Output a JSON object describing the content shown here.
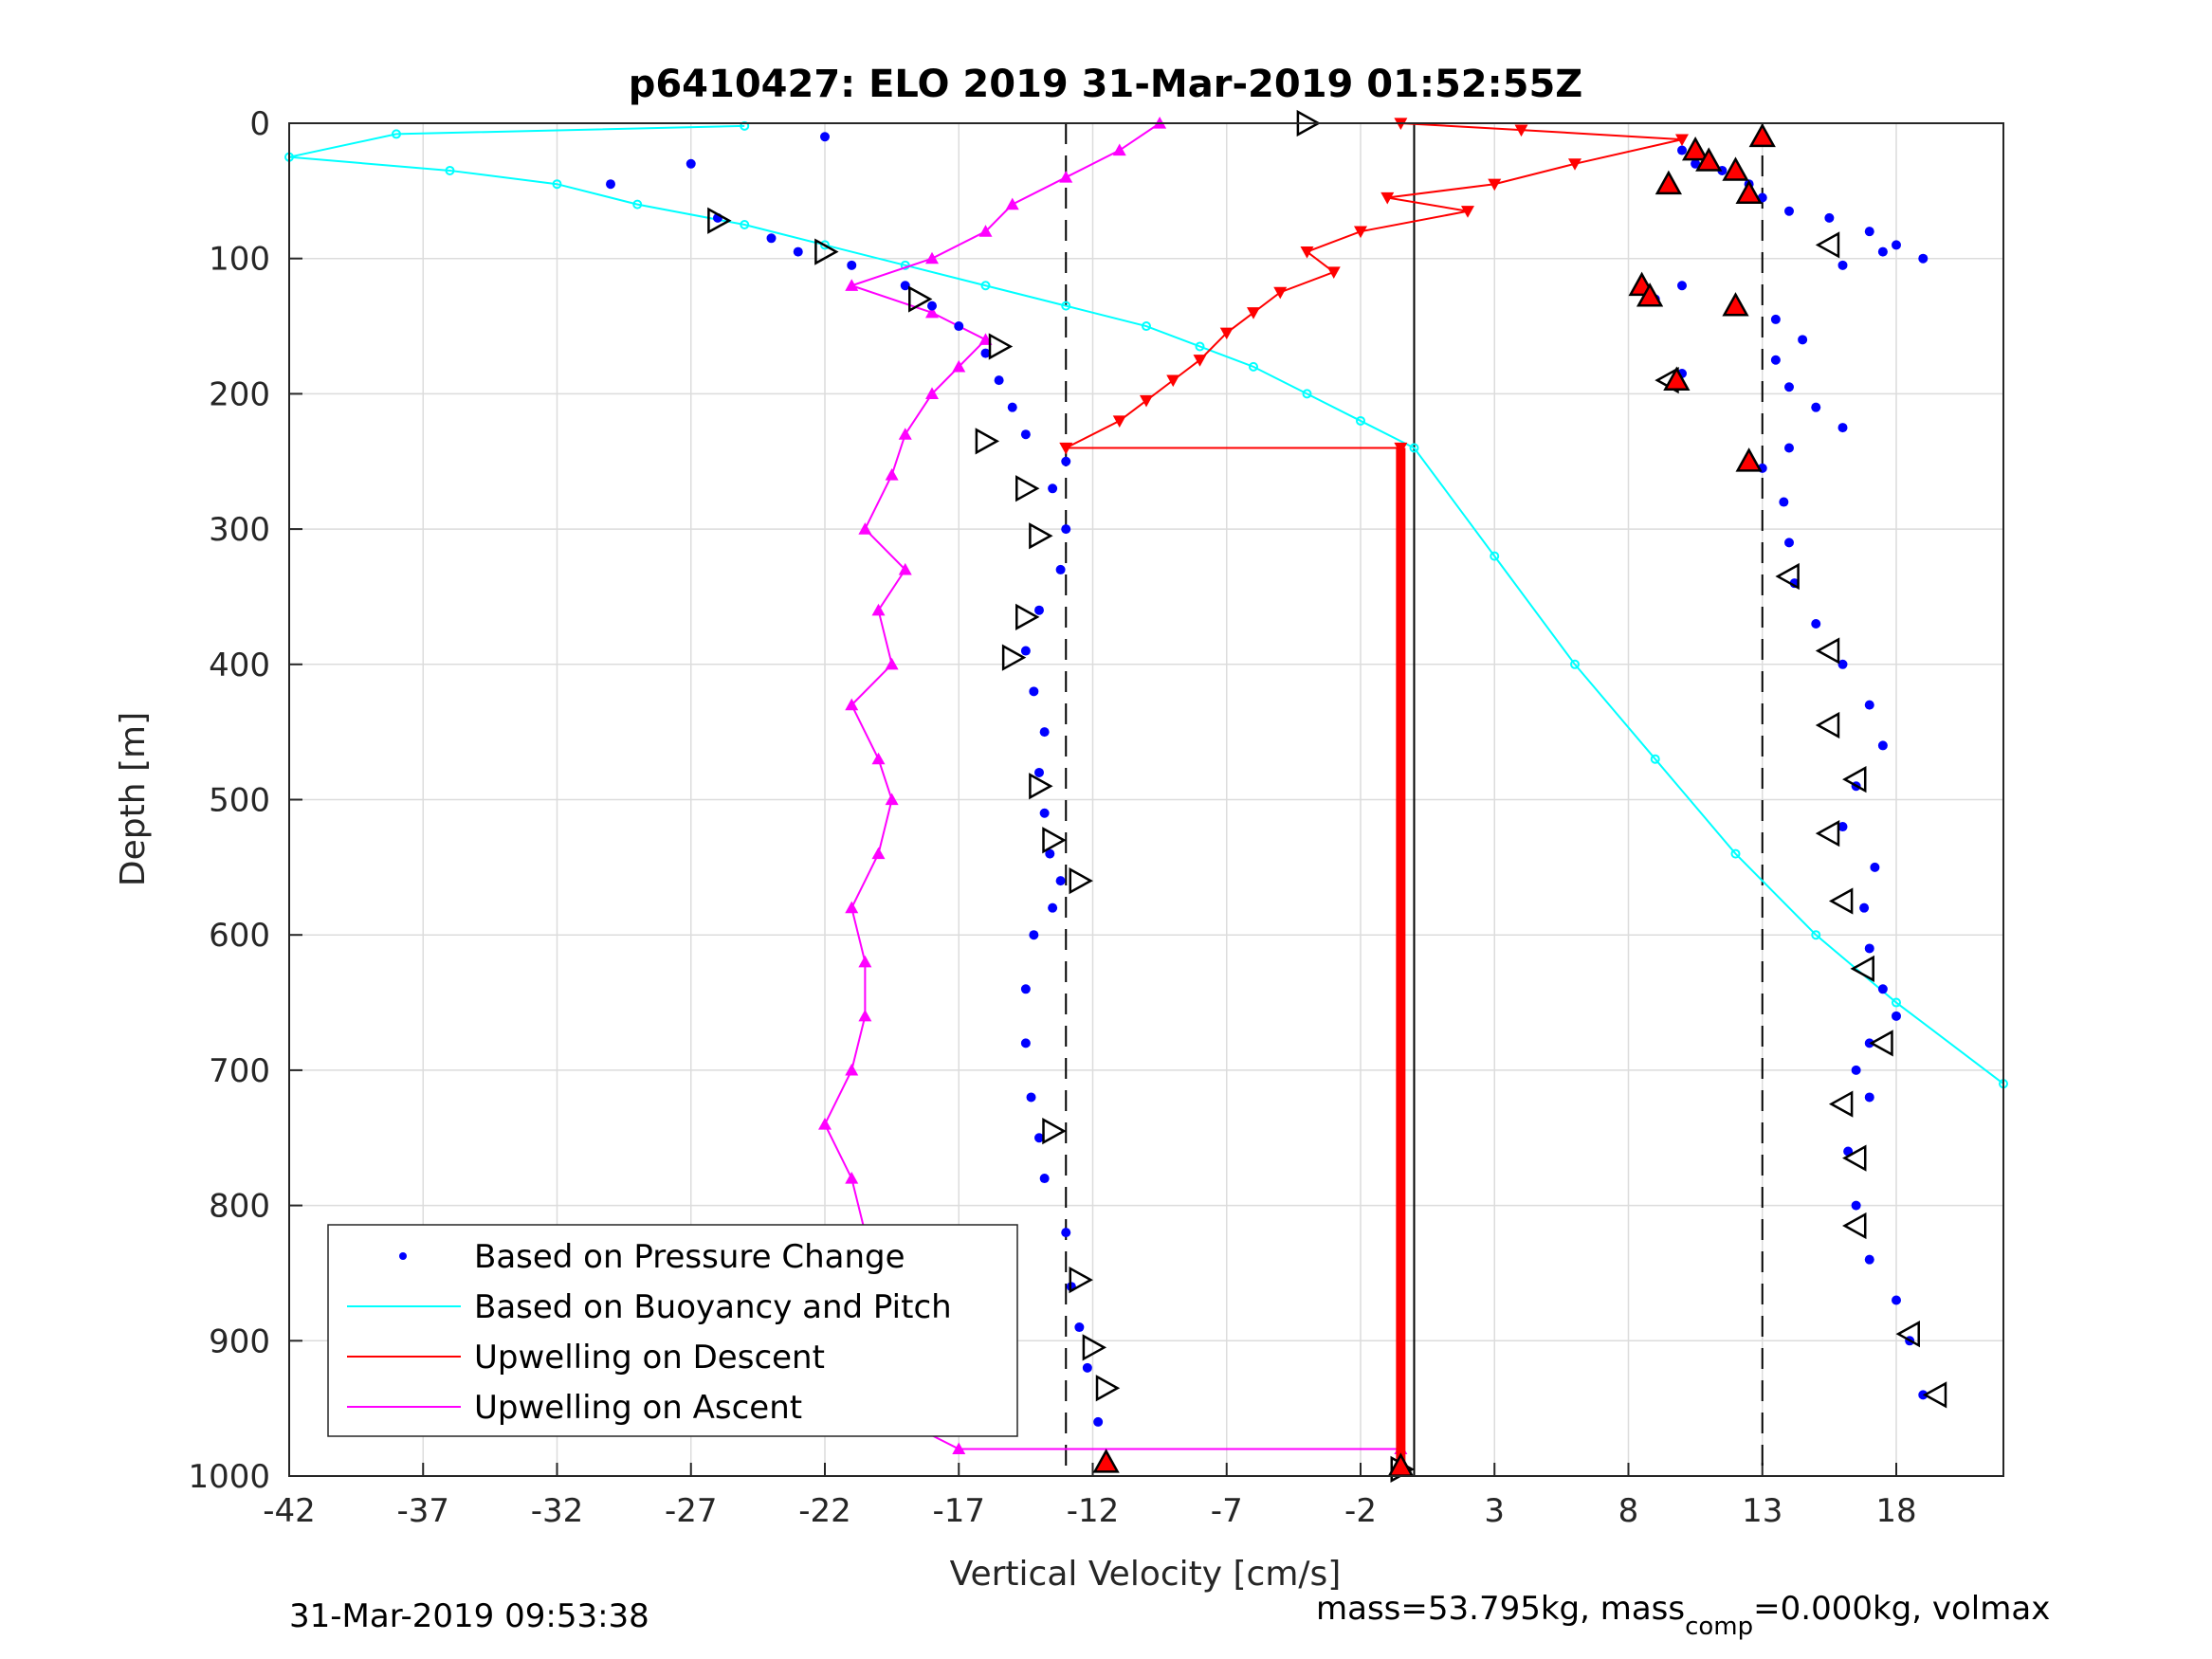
{
  "chart_data": {
    "type": "scatter",
    "title": "p6410427: ELO 2019 31-Mar-2019 01:52:55Z",
    "xlabel": "Vertical Velocity [cm/s]",
    "ylabel": "Depth [m]",
    "xlim": [
      -42,
      22
    ],
    "ylim": [
      1000,
      0
    ],
    "y_reversed": true,
    "grid": true,
    "legend_position": "bottom-left",
    "x_ticks": [
      -42,
      -37,
      -32,
      -27,
      -22,
      -17,
      -12,
      -7,
      -2,
      3,
      8,
      13,
      18
    ],
    "y_ticks": [
      0,
      100,
      200,
      300,
      400,
      500,
      600,
      700,
      800,
      900,
      1000
    ],
    "reference_lines": [
      {
        "x": -13,
        "style": "dashed",
        "color": "#000000"
      },
      {
        "x": 13,
        "style": "dashed",
        "color": "#000000"
      },
      {
        "x": 0,
        "style": "solid",
        "color": "#000000"
      }
    ],
    "series": [
      {
        "name": "Based on Pressure Change",
        "color": "#0000ff",
        "marker": "dot",
        "profiles": [
          {
            "x": [
              -22,
              -27,
              -30,
              -26,
              -24,
              -23,
              -21,
              -19,
              -18,
              -17,
              -16,
              -15.5,
              -15,
              -14.5,
              -13,
              -13.5,
              -13,
              -13.2,
              -14,
              -14.5,
              -14.2,
              -13.8,
              -14,
              -13.8,
              -13.6,
              -13.2,
              -13.5,
              -14.2,
              -14.5,
              -14.5,
              -14.3,
              -14,
              -13.8,
              -13,
              -12.8,
              -12.5,
              -12.2,
              -11.8
            ],
            "y": [
              10,
              30,
              45,
              70,
              85,
              95,
              105,
              120,
              135,
              150,
              170,
              190,
              210,
              230,
              250,
              270,
              300,
              330,
              360,
              390,
              420,
              450,
              480,
              510,
              540,
              560,
              580,
              600,
              640,
              680,
              720,
              750,
              780,
              820,
              860,
              890,
              920,
              960
            ]
          },
          {
            "x": [
              10,
              10.5,
              11.5,
              12.5,
              13,
              14,
              15.5,
              17,
              18,
              19,
              17.5,
              16,
              10,
              9,
              12,
              13.5,
              14.5,
              13.5,
              10,
              14,
              15,
              16,
              14,
              13,
              13.8,
              14,
              14.2,
              15,
              16,
              17,
              17.5,
              16.5,
              16,
              17.2,
              16.8,
              17,
              17.5,
              18,
              17,
              16.5,
              17,
              16.2,
              16.5,
              17,
              18,
              18.5,
              19
            ],
            "y": [
              20,
              30,
              35,
              45,
              55,
              65,
              70,
              80,
              90,
              100,
              95,
              105,
              120,
              130,
              135,
              145,
              160,
              175,
              185,
              195,
              210,
              225,
              240,
              255,
              280,
              310,
              340,
              370,
              400,
              430,
              460,
              490,
              520,
              550,
              580,
              610,
              640,
              660,
              680,
              700,
              720,
              760,
              800,
              840,
              870,
              900,
              940
            ]
          }
        ]
      },
      {
        "name": "Based on Buoyancy and Pitch",
        "color": "#00ffff",
        "marker": "circle",
        "x": [
          -25,
          -38,
          -42,
          -36,
          -32,
          -29,
          -25,
          -22,
          -19,
          -16,
          -13,
          -10,
          -8,
          -6,
          -4,
          -2,
          0,
          3,
          6,
          9,
          12,
          15,
          18,
          22
        ],
        "y": [
          2,
          8,
          25,
          35,
          45,
          60,
          75,
          90,
          105,
          120,
          135,
          150,
          165,
          180,
          200,
          220,
          240,
          320,
          400,
          470,
          540,
          600,
          650,
          710
        ]
      },
      {
        "name": "Upwelling on Descent",
        "color": "#ff0000",
        "marker": "triangle-down",
        "x": [
          -0.5,
          4,
          10,
          6,
          3,
          -1,
          2,
          -2,
          -4,
          -3,
          -5,
          -6,
          -7,
          -8,
          -9,
          -10,
          -11,
          -13,
          -0.5
        ],
        "y": [
          0,
          5,
          12,
          30,
          45,
          55,
          65,
          80,
          95,
          110,
          125,
          140,
          155,
          175,
          190,
          205,
          220,
          240,
          240
        ]
      },
      {
        "name": "Upwelling on Ascent",
        "color": "#ff00ff",
        "marker": "triangle-up",
        "x": [
          -9.5,
          -11,
          -13,
          -15,
          -16,
          -18,
          -21,
          -18,
          -16,
          -17,
          -18,
          -19,
          -19.5,
          -20.5,
          -19,
          -20,
          -19.5,
          -21,
          -20,
          -19.5,
          -20,
          -21,
          -20.5,
          -20.5,
          -21,
          -22,
          -21,
          -20.5,
          -20,
          -19,
          -18,
          -19,
          -17,
          -0.5
        ],
        "y": [
          0,
          20,
          40,
          60,
          80,
          100,
          120,
          140,
          160,
          180,
          200,
          230,
          260,
          300,
          330,
          360,
          400,
          430,
          470,
          500,
          540,
          580,
          620,
          660,
          700,
          740,
          780,
          820,
          860,
          900,
          930,
          960,
          980,
          980
        ]
      }
    ],
    "annotations": {
      "open_triangle_markers": [
        {
          "x": -4,
          "y": 0
        },
        {
          "x": -26,
          "y": 72
        },
        {
          "x": -22,
          "y": 95
        },
        {
          "x": -18.5,
          "y": 130
        },
        {
          "x": -15.5,
          "y": 165
        },
        {
          "x": -16,
          "y": 235
        },
        {
          "x": -14.5,
          "y": 270
        },
        {
          "x": -14,
          "y": 305
        },
        {
          "x": -14.5,
          "y": 365
        },
        {
          "x": -15,
          "y": 395
        },
        {
          "x": -14,
          "y": 490
        },
        {
          "x": -13.5,
          "y": 530
        },
        {
          "x": -12.5,
          "y": 560
        },
        {
          "x": -13.5,
          "y": 745
        },
        {
          "x": -12.5,
          "y": 855
        },
        {
          "x": -12,
          "y": 905
        },
        {
          "x": -11.5,
          "y": 935
        },
        {
          "x": 15.5,
          "y": 90
        },
        {
          "x": 9.5,
          "y": 190
        },
        {
          "x": 14,
          "y": 335
        },
        {
          "x": 15.5,
          "y": 390
        },
        {
          "x": 15.5,
          "y": 445
        },
        {
          "x": 16.5,
          "y": 485
        },
        {
          "x": 15.5,
          "y": 525
        },
        {
          "x": 16,
          "y": 575
        },
        {
          "x": 16.8,
          "y": 625
        },
        {
          "x": 17.5,
          "y": 680
        },
        {
          "x": 16,
          "y": 725
        },
        {
          "x": 16.5,
          "y": 765
        },
        {
          "x": 16.5,
          "y": 815
        },
        {
          "x": 18.5,
          "y": 895
        },
        {
          "x": 19.5,
          "y": 940
        },
        {
          "x": -0.5,
          "y": 995
        }
      ],
      "red_triangle_markers": [
        {
          "x": 13,
          "y": 10
        },
        {
          "x": 10.5,
          "y": 20
        },
        {
          "x": 11,
          "y": 28
        },
        {
          "x": 12,
          "y": 35
        },
        {
          "x": 9.5,
          "y": 45
        },
        {
          "x": 12.5,
          "y": 52
        },
        {
          "x": 8.5,
          "y": 120
        },
        {
          "x": 8.8,
          "y": 128
        },
        {
          "x": 12,
          "y": 135
        },
        {
          "x": 9.8,
          "y": 190
        },
        {
          "x": 12.5,
          "y": 250
        },
        {
          "x": -11.5,
          "y": 990
        },
        {
          "x": -0.5,
          "y": 993
        }
      ]
    }
  },
  "footer": {
    "timestamp": "31-Mar-2019 09:53:38",
    "mass_text": "mass=53.795kg, mass",
    "mass_sub": "comp",
    "mass_rest": "=0.000kg, volmax"
  }
}
